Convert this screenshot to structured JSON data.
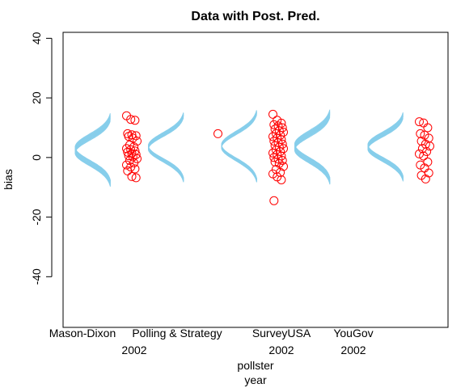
{
  "chart_data": {
    "type": "scatter",
    "title": "Data with Post. Pred.",
    "ylabel": "bias",
    "xlabel": "pollster",
    "xlabel2": "year",
    "ylim": [
      -57,
      42
    ],
    "y_ticks": [
      40,
      20,
      0,
      -20,
      -40
    ],
    "y_tick_labels": [
      "40",
      "20",
      "0",
      "-20",
      "-40"
    ],
    "x_tick_labels": [
      {
        "line1": "Mason-Dixon",
        "line2": ""
      },
      {
        "line1": "Polling & Strategy",
        "line2": "2002"
      },
      {
        "line1": "SurveyUSA",
        "line2": "2002"
      },
      {
        "line1": "YouGov",
        "line2": "2002"
      },
      {
        "line1": "",
        "line2": ""
      }
    ],
    "groups": [
      {
        "index": 1,
        "points": [
          14.0,
          12.8,
          12.5,
          8.0,
          7.6,
          7.3,
          7.1,
          6.5,
          5.5,
          4.2,
          3.6,
          3.0,
          2.6,
          2.2,
          1.8,
          1.4,
          1.0,
          0.6,
          0.2,
          -0.4,
          -1.0,
          -1.8,
          -2.5,
          -3.2,
          -3.8,
          -4.5,
          -6.4,
          -6.8
        ],
        "pred_mean": 2.5,
        "pred_mean_range": [
          1.5,
          3.5
        ],
        "pred_sd": 4.4
      },
      {
        "index": 2,
        "points": [
          8.0
        ],
        "pred_mean": 3.4,
        "pred_mean_range": [
          2.8,
          4.0
        ],
        "pred_sd": 4.3
      },
      {
        "index": 3,
        "points": [
          14.5,
          12.5,
          11.5,
          11.0,
          10.6,
          10.0,
          9.5,
          9.0,
          8.5,
          8.0,
          7.5,
          7.0,
          6.5,
          6.0,
          5.5,
          5.0,
          4.5,
          4.0,
          3.5,
          3.0,
          2.5,
          2.0,
          1.5,
          1.0,
          0.5,
          0.0,
          -0.5,
          -1.0,
          -1.5,
          -2.0,
          -3.0,
          -4.0,
          -5.0,
          -5.5,
          -6.5,
          -7.5,
          -14.5
        ],
        "pred_mean": 3.8,
        "pred_mean_range": [
          3.3,
          4.3
        ],
        "pred_sd": 4.5
      },
      {
        "index": 4,
        "points": [],
        "pred_mean": 3.5,
        "pred_mean_range": [
          2.5,
          4.5
        ],
        "pred_sd": 4.5
      },
      {
        "index": 5,
        "points": [
          12.0,
          11.6,
          10.0,
          8.0,
          7.5,
          6.5,
          5.5,
          4.5,
          3.8,
          3.0,
          2.0,
          1.2,
          0.5,
          -1.5,
          -2.5,
          -3.5,
          -5.2,
          -6.0,
          -7.2
        ],
        "pred_mean": 3.5,
        "pred_mean_range": [
          2.8,
          4.3
        ],
        "pred_sd": 4.2
      }
    ],
    "pred_draws": 14,
    "colors": {
      "pred": "#87ceeb",
      "points": "#ff0000",
      "axis": "#000000"
    },
    "grid": false
  }
}
